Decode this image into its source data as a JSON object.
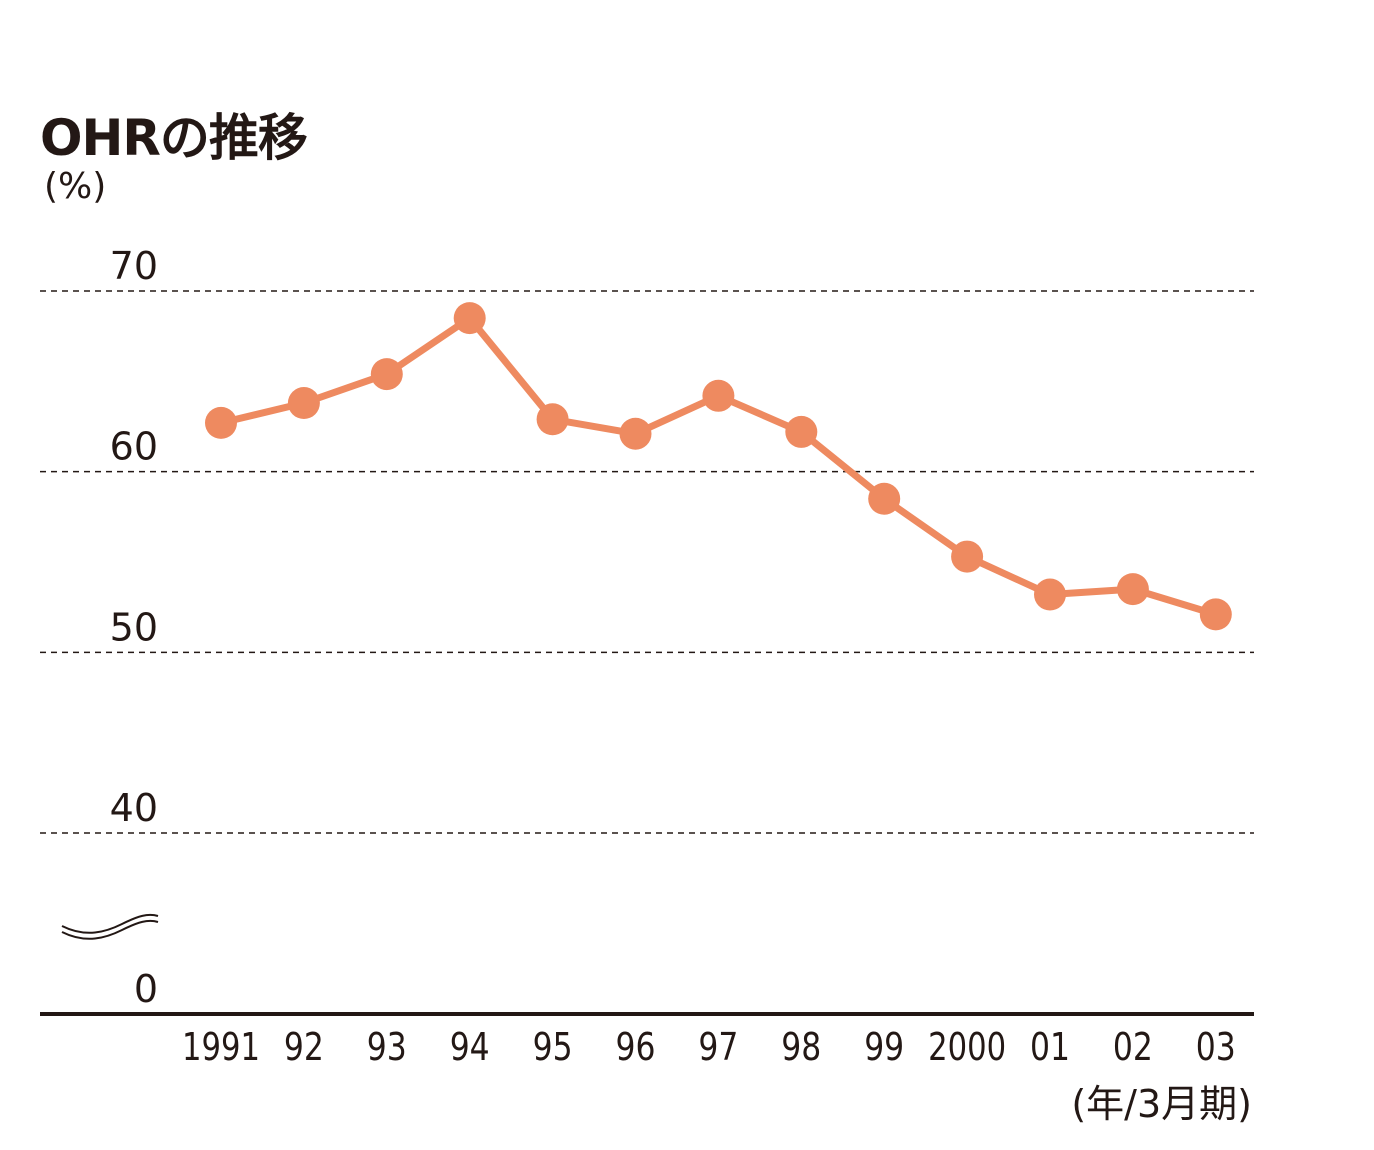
{
  "title": "OHRの推移",
  "y_unit": "(%)",
  "x_unit": "(年/3月期)",
  "colors": {
    "series": "#EE8A60",
    "axis": "#231815",
    "grid": "#231815",
    "text": "#231815"
  },
  "chart_data": {
    "type": "line",
    "title": "OHRの推移",
    "xlabel": "(年/3月期)",
    "ylabel": "(%)",
    "categories": [
      "1991",
      "92",
      "93",
      "94",
      "95",
      "96",
      "97",
      "98",
      "99",
      "2000",
      "01",
      "02",
      "03"
    ],
    "series": [
      {
        "values": [
          62.7,
          63.8,
          65.4,
          68.5,
          62.9,
          62.1,
          64.2,
          62.2,
          58.5,
          55.3,
          53.2,
          53.5,
          52.1
        ]
      }
    ],
    "y_ticks": [
      0,
      40,
      50,
      60,
      70
    ],
    "y_tick_labels": [
      "0",
      "40",
      "50",
      "60",
      "70"
    ],
    "ylim": [
      40,
      70
    ],
    "axis_break": true,
    "grid": true,
    "markers": true
  }
}
